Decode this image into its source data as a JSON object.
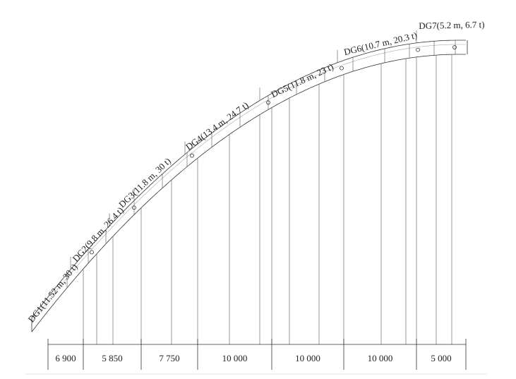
{
  "segments": [
    "DG1(11.52 m, 30 t)",
    "DG2(9.8 m, 26.4 t)",
    "DG3(11.8 m, 30 t)",
    "DG4(13.4 m, 24.7 t)",
    "DG5(11.8 m, 23 t)",
    "DG6(10.7 m, 20.3 t)",
    "DG7(5.2 m, 6.7 t)"
  ],
  "dimensions": [
    "6 900",
    "5 850",
    "7 750",
    "10 000",
    "10 000",
    "10 000",
    "5 000"
  ]
}
